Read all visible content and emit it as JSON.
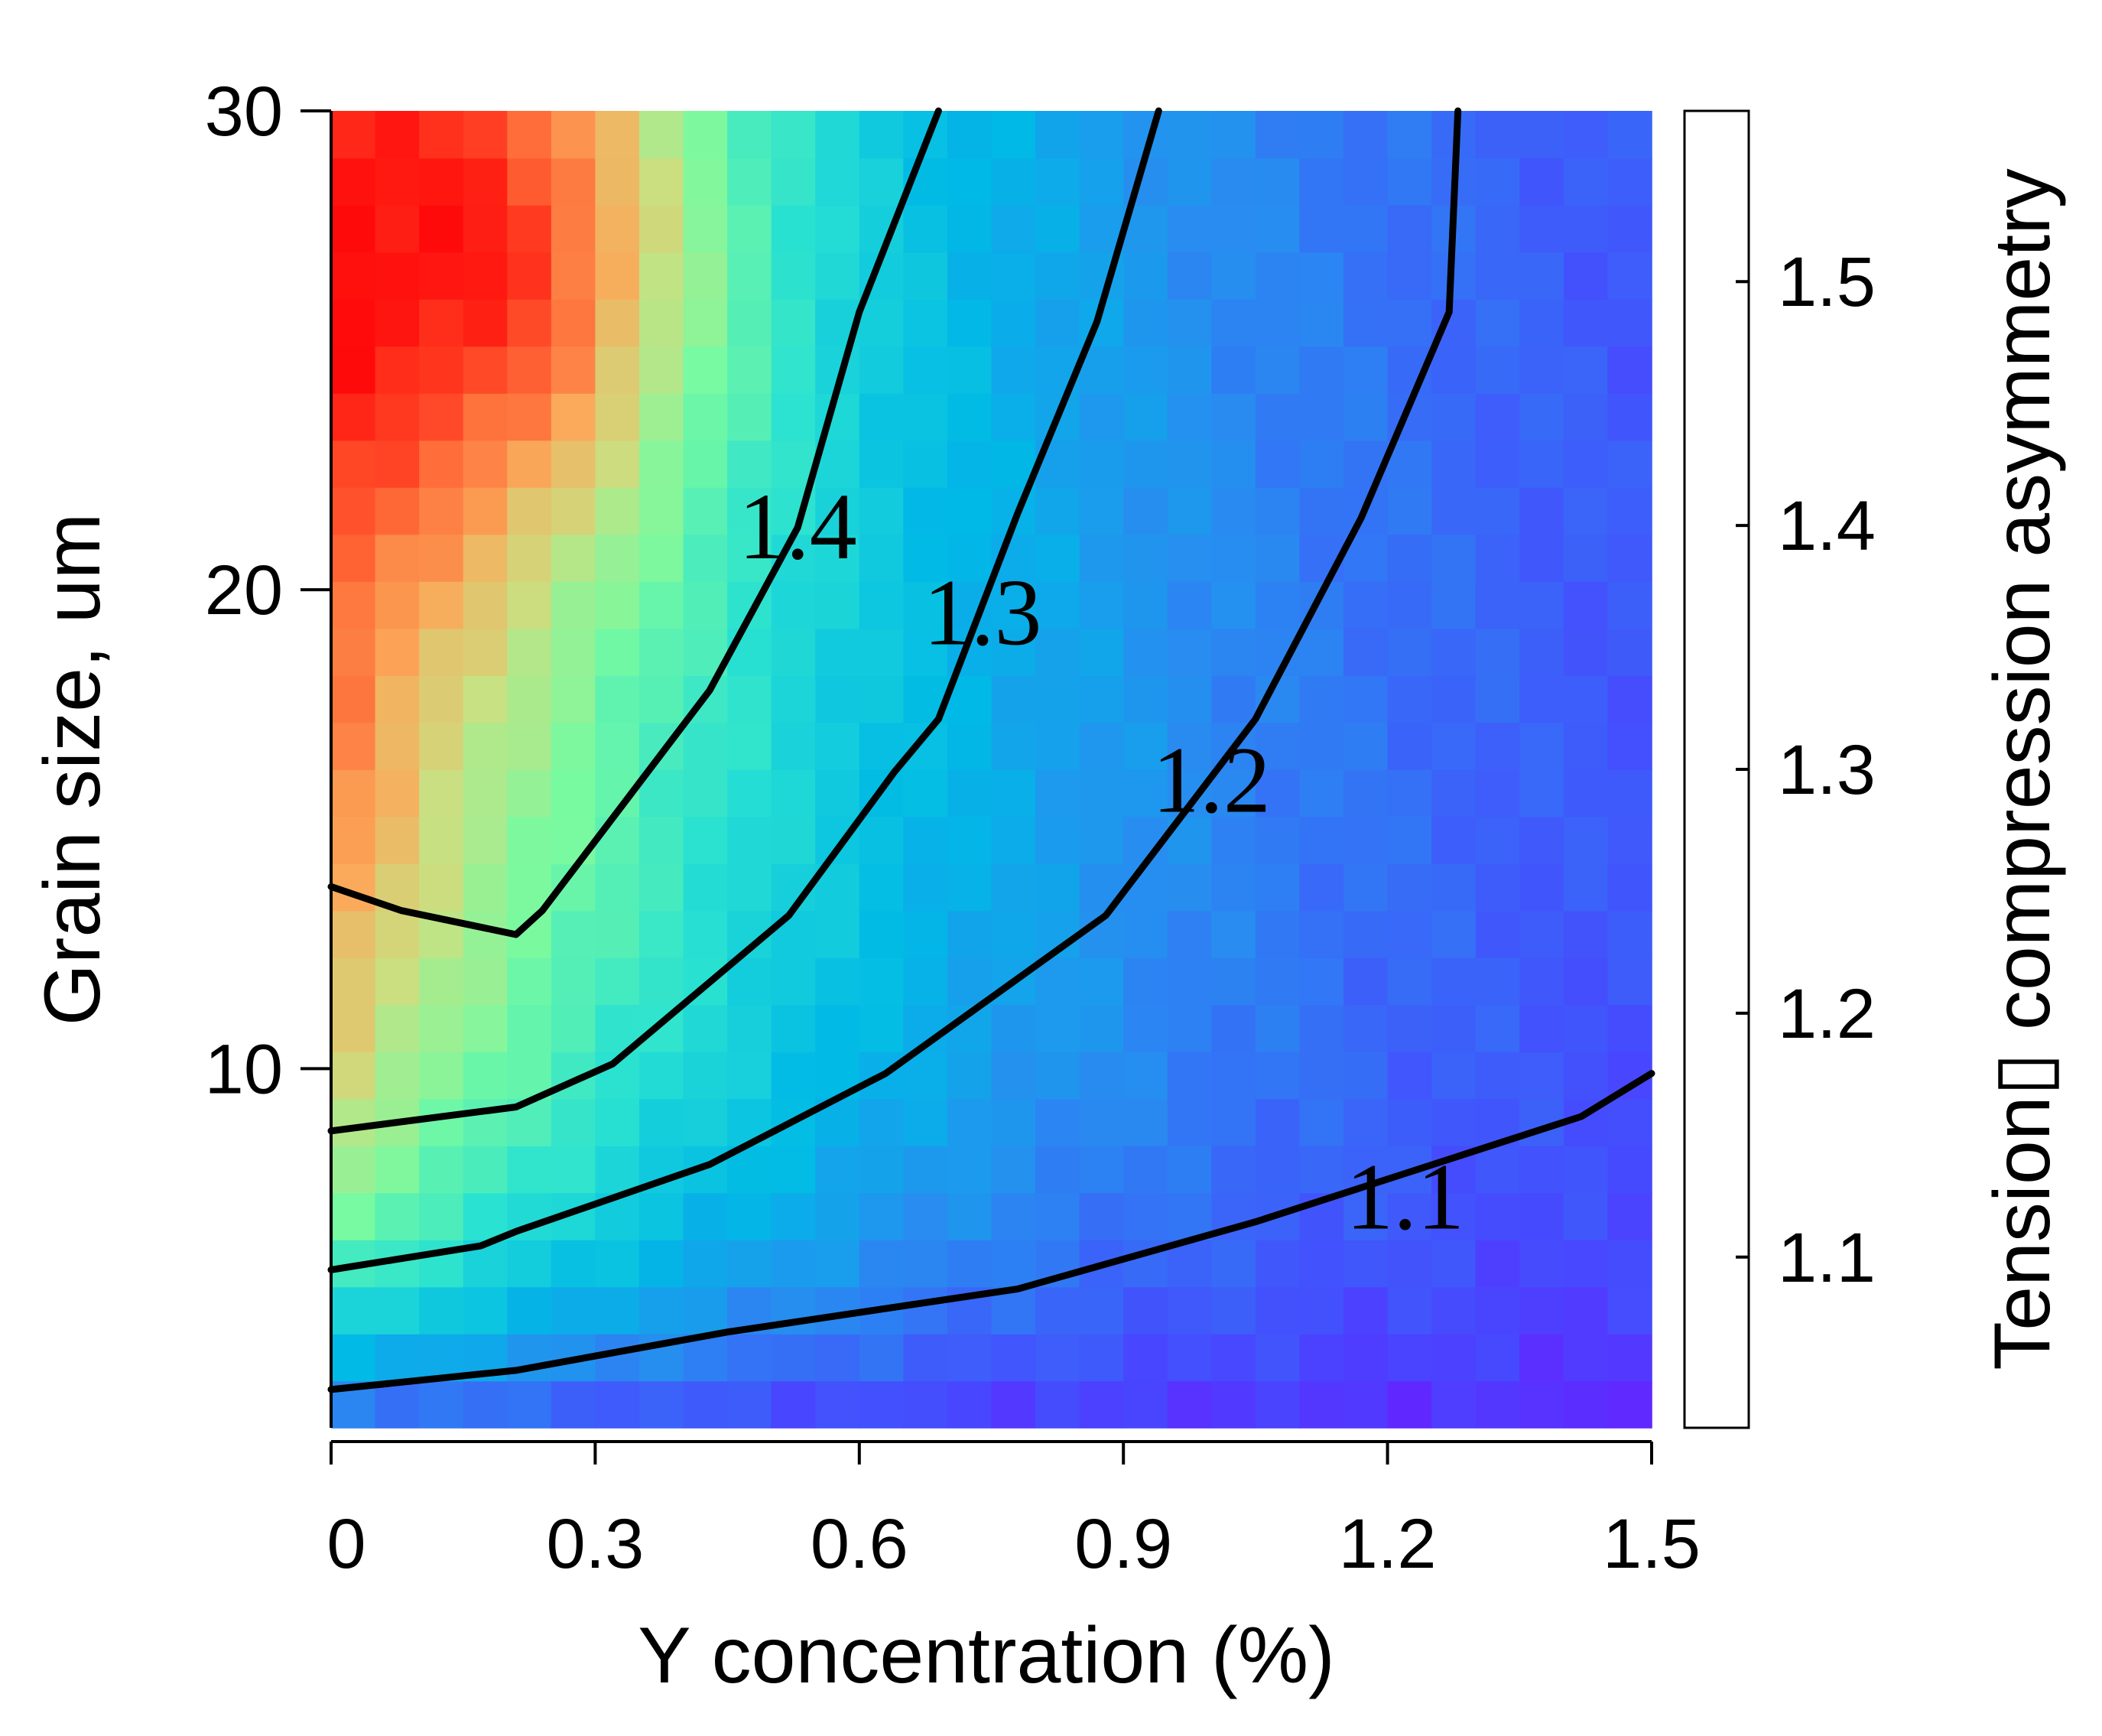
{
  "chart_data": {
    "type": "heatmap",
    "title": "",
    "xlabel": "Y concentration (%)",
    "ylabel": "Grain size, um",
    "colorbar_label": "Tension▯ compression asymmetry",
    "xlim": [
      0,
      1.5
    ],
    "ylim": [
      2.5,
      30
    ],
    "x_ticks": [
      "0",
      "0.3",
      "0.6",
      "0.9",
      "1.2",
      "1.5"
    ],
    "y_ticks": [
      "10",
      "20",
      "30"
    ],
    "colorbar_range": [
      1.03,
      1.57
    ],
    "colorbar_ticks": [
      "1.1",
      "1.2",
      "1.3",
      "1.4",
      "1.5"
    ],
    "grid": {
      "nx": 30,
      "ny": 28
    },
    "hotspot": {
      "x": 0.22,
      "y": 27,
      "value": 1.56
    },
    "contour_levels": [
      {
        "level": "1.1",
        "label_at": [
          1.22,
          7.3
        ],
        "points": [
          [
            0,
            3.3
          ],
          [
            0.21,
            3.7
          ],
          [
            0.45,
            4.5
          ],
          [
            0.78,
            5.4
          ],
          [
            1.05,
            6.8
          ],
          [
            1.42,
            9.0
          ],
          [
            1.5,
            9.9
          ]
        ]
      },
      {
        "level": "1.2",
        "label_at": [
          1.0,
          16.0
        ],
        "points": [
          [
            0,
            5.8
          ],
          [
            0.17,
            6.3
          ],
          [
            0.21,
            6.6
          ],
          [
            0.43,
            8.0
          ],
          [
            0.63,
            9.9
          ],
          [
            0.88,
            13.2
          ],
          [
            1.05,
            17.3
          ],
          [
            1.17,
            21.5
          ],
          [
            1.27,
            25.8
          ],
          [
            1.28,
            30
          ]
        ]
      },
      {
        "level": "1.3",
        "label_at": [
          0.74,
          19.5
        ],
        "points": [
          [
            0,
            8.7
          ],
          [
            0.21,
            9.2
          ],
          [
            0.32,
            10.1
          ],
          [
            0.52,
            13.2
          ],
          [
            0.64,
            16.2
          ],
          [
            0.69,
            17.3
          ],
          [
            0.78,
            21.6
          ],
          [
            0.87,
            25.6
          ],
          [
            0.94,
            30
          ]
        ]
      },
      {
        "level": "1.4",
        "label_at": [
          0.53,
          21.3
        ],
        "points": [
          [
            0,
            13.8
          ],
          [
            0.08,
            13.3
          ],
          [
            0.21,
            12.8
          ],
          [
            0.24,
            13.3
          ],
          [
            0.43,
            17.9
          ],
          [
            0.53,
            21.3
          ],
          [
            0.6,
            25.8
          ],
          [
            0.69,
            30
          ]
        ]
      }
    ]
  }
}
